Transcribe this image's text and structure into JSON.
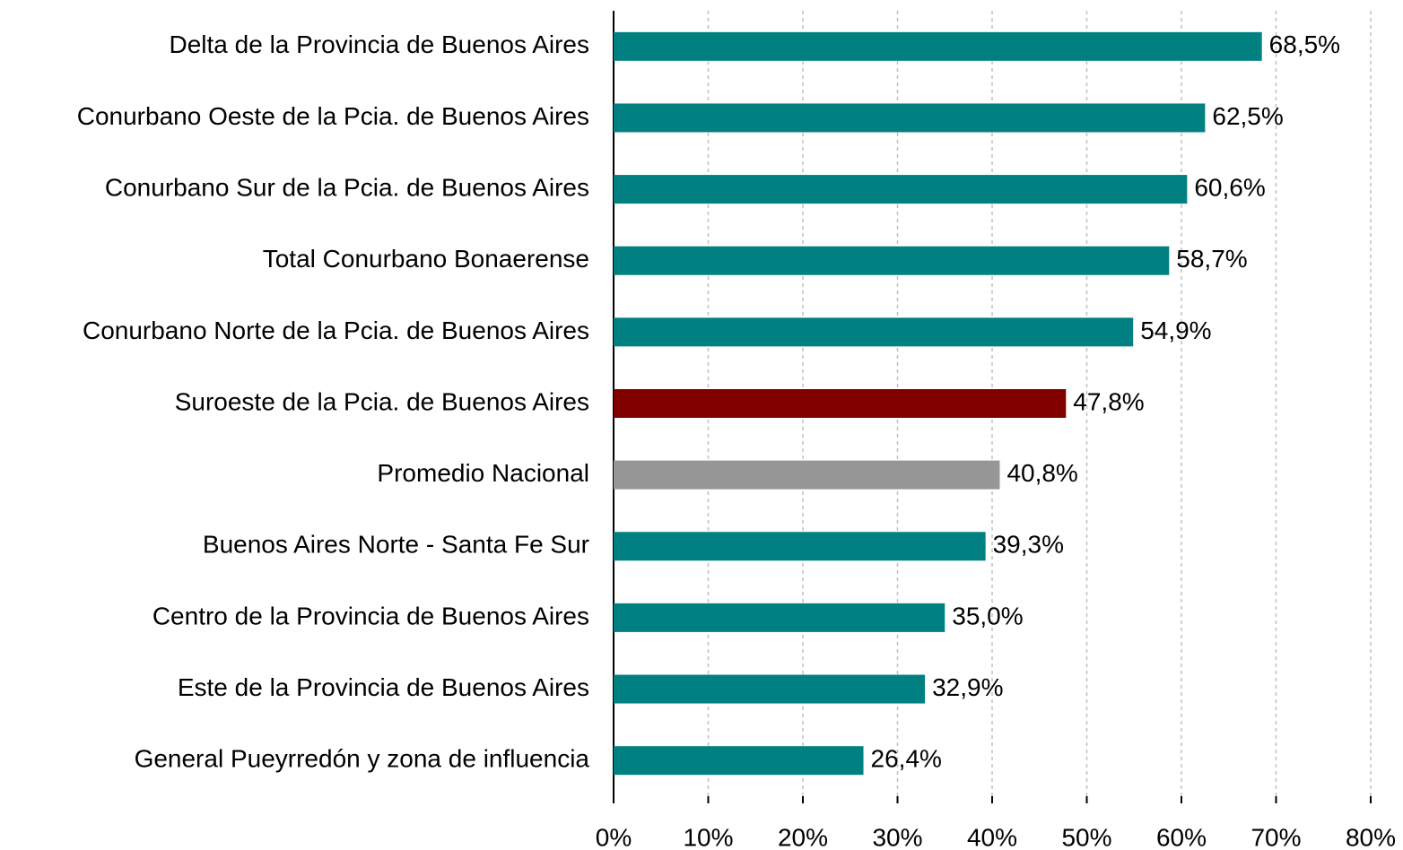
{
  "chart_data": {
    "type": "barh",
    "categories": [
      "Delta de la Provincia de Buenos Aires",
      "Conurbano Oeste de la Pcia. de Buenos Aires",
      "Conurbano Sur de la Pcia. de Buenos Aires",
      "Total Conurbano Bonaerense",
      "Conurbano Norte de la Pcia. de Buenos Aires",
      "Suroeste de la Pcia. de Buenos Aires",
      "Promedio Nacional",
      "Buenos Aires Norte - Santa Fe Sur",
      "Centro de la Provincia de Buenos Aires",
      "Este de la Provincia de Buenos Aires",
      "General Pueyrredón y zona de influencia"
    ],
    "values": [
      68.5,
      62.5,
      60.6,
      58.7,
      54.9,
      47.8,
      40.8,
      39.3,
      35.0,
      32.9,
      26.4
    ],
    "value_labels": [
      "68,5%",
      "62,5%",
      "60,6%",
      "58,7%",
      "54,9%",
      "47,8%",
      "40,8%",
      "39,3%",
      "35,0%",
      "32,9%",
      "26,4%"
    ],
    "colors": [
      "#008080",
      "#008080",
      "#008080",
      "#008080",
      "#008080",
      "#800000",
      "#969696",
      "#008080",
      "#008080",
      "#008080",
      "#008080"
    ],
    "xlim": [
      0,
      80
    ],
    "xticks": [
      {
        "value": 0,
        "label": "0%"
      },
      {
        "value": 10,
        "label": "10%"
      },
      {
        "value": 20,
        "label": "20%"
      },
      {
        "value": 30,
        "label": "30%"
      },
      {
        "value": 40,
        "label": "40%"
      },
      {
        "value": 50,
        "label": "50%"
      },
      {
        "value": 60,
        "label": "60%"
      },
      {
        "value": 70,
        "label": "70%"
      },
      {
        "value": 80,
        "label": "80%"
      }
    ],
    "grid": true
  }
}
